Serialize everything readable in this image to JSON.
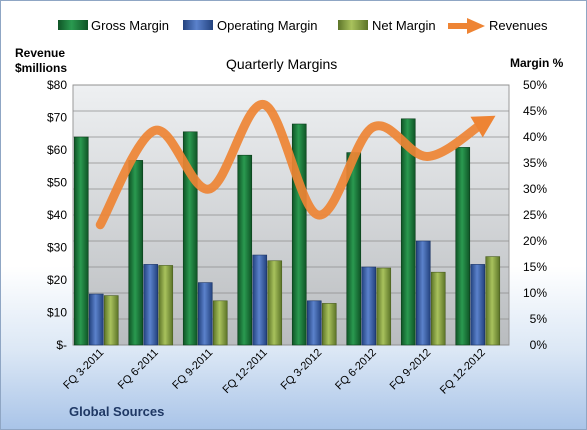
{
  "chart_data": {
    "type": "bar",
    "title": "Quarterly Margins",
    "source": "Global Sources",
    "y_left_label_line1": "Revenue",
    "y_left_label_line2": "$millions",
    "y_right_label": "Margin %",
    "categories": [
      "FQ 3-2011",
      "FQ 6-2011",
      "FQ 9-2011",
      "FQ 12-2011",
      "FQ 3-2012",
      "FQ 6-2012",
      "FQ 9-2012",
      "FQ 12-2012"
    ],
    "y_left_ticks": [
      "$-",
      "$10",
      "$20",
      "$30",
      "$40",
      "$50",
      "$60",
      "$70",
      "$80"
    ],
    "y_right_ticks": [
      "0%",
      "5%",
      "10%",
      "15%",
      "20%",
      "25%",
      "30%",
      "35%",
      "40%",
      "45%",
      "50%"
    ],
    "ylim_left": [
      0,
      80
    ],
    "ylim_right": [
      0,
      50
    ],
    "grid": true,
    "legend_position": "top",
    "series": [
      {
        "name": "Gross Margin",
        "axis": "right",
        "kind": "bar",
        "color": "#1e7a3c",
        "values": [
          40,
          35.5,
          41,
          36.5,
          42.5,
          37,
          43.5,
          38
        ]
      },
      {
        "name": "Operating Margin",
        "axis": "right",
        "kind": "bar",
        "color": "#3a62ad",
        "values": [
          9.8,
          15.5,
          12,
          17.3,
          8.5,
          15,
          20,
          15.5
        ]
      },
      {
        "name": "Net Margin",
        "axis": "right",
        "kind": "bar",
        "color": "#8aa544",
        "values": [
          9.5,
          15.3,
          8.5,
          16.2,
          8,
          14.8,
          14,
          17
        ]
      },
      {
        "name": "Revenues",
        "axis": "left",
        "kind": "line",
        "color": "#ee8434",
        "values": [
          37,
          66,
          48,
          74,
          40,
          67,
          58,
          68
        ]
      }
    ]
  }
}
